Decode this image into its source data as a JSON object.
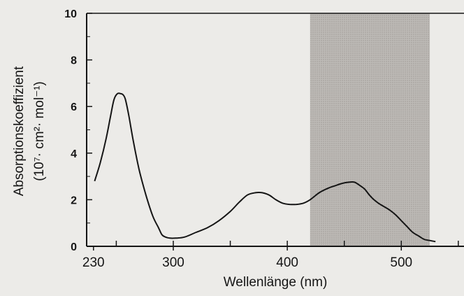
{
  "chart_data": {
    "type": "line",
    "title": "",
    "xlabel": "Wellenlänge (nm)",
    "ylabel_line1": "Absorptionskoeffizient",
    "ylabel_line2": "(10⁷· cm²· mol⁻¹)",
    "xlim": [
      224,
      555
    ],
    "ylim": [
      0,
      10
    ],
    "x_ticks": [
      230,
      300,
      400,
      500
    ],
    "y_ticks": [
      0,
      2,
      4,
      6,
      8,
      10
    ],
    "grid": false,
    "shaded_band": {
      "from": 420,
      "to": 525,
      "color": "#bdbab6"
    },
    "series": [
      {
        "x": [
          231,
          236,
          241,
          245,
          248,
          251,
          254,
          256,
          258,
          261,
          265,
          270,
          276,
          282,
          287,
          290,
          293,
          297,
          302,
          310,
          320,
          330,
          340,
          350,
          358,
          365,
          372,
          378,
          384,
          390,
          396,
          402,
          408,
          414,
          420,
          428,
          436,
          442,
          448,
          454,
          459,
          464,
          468,
          472,
          476,
          480,
          485,
          490,
          495,
          500,
          505,
          510,
          515,
          520,
          525,
          530
        ],
        "y": [
          2.8,
          3.6,
          4.6,
          5.6,
          6.3,
          6.55,
          6.55,
          6.5,
          6.3,
          5.6,
          4.5,
          3.3,
          2.2,
          1.3,
          0.8,
          0.5,
          0.4,
          0.35,
          0.35,
          0.4,
          0.6,
          0.8,
          1.1,
          1.5,
          1.9,
          2.2,
          2.3,
          2.3,
          2.2,
          2.0,
          1.85,
          1.8,
          1.8,
          1.85,
          2.0,
          2.3,
          2.5,
          2.6,
          2.7,
          2.75,
          2.75,
          2.6,
          2.45,
          2.2,
          2.0,
          1.85,
          1.7,
          1.55,
          1.35,
          1.1,
          0.85,
          0.6,
          0.45,
          0.3,
          0.25,
          0.2
        ],
        "color": "#151515"
      }
    ]
  }
}
